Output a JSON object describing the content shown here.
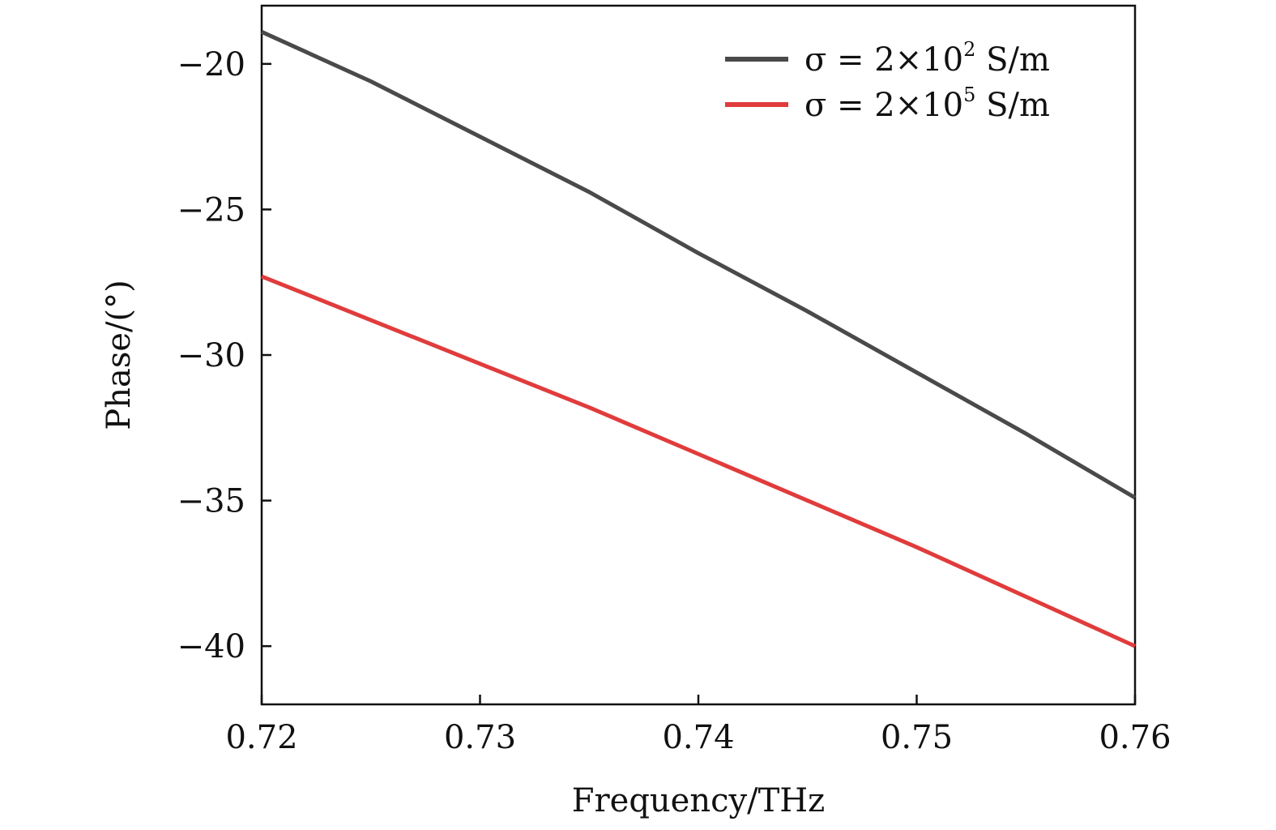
{
  "chart_data": {
    "type": "line",
    "title": "",
    "xlabel": "Frequency/THz",
    "ylabel": "Phase/(°)",
    "xlim": [
      0.72,
      0.76
    ],
    "ylim": [
      -42,
      -18
    ],
    "x_ticks": [
      0.72,
      0.73,
      0.74,
      0.75,
      0.76
    ],
    "x_tick_labels": [
      "0.72",
      "0.73",
      "0.74",
      "0.75",
      "0.76"
    ],
    "y_ticks": [
      -20,
      -25,
      -30,
      -35,
      -40
    ],
    "y_tick_labels": [
      "−20",
      "−25",
      "−30",
      "−35",
      "−40"
    ],
    "grid": false,
    "legend_position": "top-right",
    "series": [
      {
        "name": "σ = 2×10² S/m",
        "name_parts": {
          "prefix": "σ = 2×10",
          "sup": "2",
          "suffix": " S/m"
        },
        "color": "#4a4a4a",
        "x": [
          0.72,
          0.725,
          0.73,
          0.735,
          0.74,
          0.745,
          0.75,
          0.755,
          0.76
        ],
        "y": [
          -18.9,
          -20.6,
          -22.5,
          -24.4,
          -26.5,
          -28.5,
          -30.6,
          -32.7,
          -34.9
        ]
      },
      {
        "name": "σ = 2×10⁵ S/m",
        "name_parts": {
          "prefix": "σ = 2×10",
          "sup": "5",
          "suffix": " S/m"
        },
        "color": "#e03c3c",
        "x": [
          0.72,
          0.725,
          0.73,
          0.735,
          0.74,
          0.745,
          0.75,
          0.755,
          0.76
        ],
        "y": [
          -27.3,
          -28.8,
          -30.3,
          -31.8,
          -33.4,
          -35.0,
          -36.6,
          -38.3,
          -40.0
        ]
      }
    ]
  }
}
